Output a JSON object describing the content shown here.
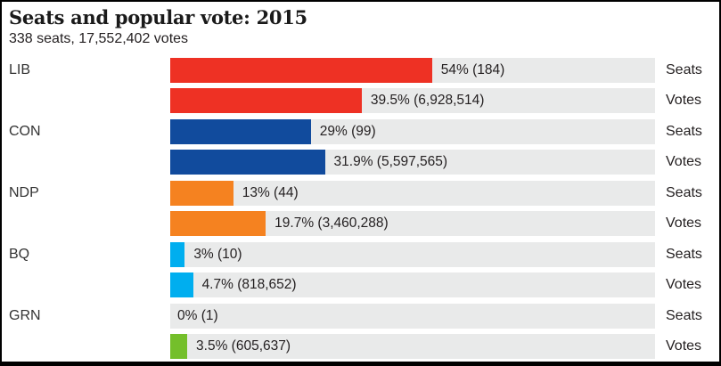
{
  "header": {
    "title": "Seats and popular vote: 2015",
    "subtitle": "338 seats, 17,552,402 votes"
  },
  "row_labels": {
    "seats": "Seats",
    "votes": "Votes"
  },
  "colors": {
    "border": "#000000",
    "track": "#E9EAEA",
    "lib": "#EE3124",
    "con": "#114B9D",
    "ndp": "#F58220",
    "bq": "#00AEEF",
    "grn": "#74BF2B"
  },
  "chart_data": {
    "type": "bar",
    "title": "Seats and popular vote: 2015",
    "subtitle": "338 seats, 17,552,402 votes",
    "total_seats": 338,
    "total_votes": 17552402,
    "x_max_percent": 100,
    "grid": false,
    "legend_position": "right-row-labels",
    "parties": [
      {
        "abbr": "LIB",
        "color": "#EE3124",
        "seats_percent": 54,
        "seats_count": 184,
        "seats_label": "54% (184)",
        "votes_percent": 39.5,
        "votes_count": 6928514,
        "votes_label": "39.5% (6,928,514)"
      },
      {
        "abbr": "CON",
        "color": "#114B9D",
        "seats_percent": 29,
        "seats_count": 99,
        "seats_label": "29% (99)",
        "votes_percent": 31.9,
        "votes_count": 5597565,
        "votes_label": "31.9% (5,597,565)"
      },
      {
        "abbr": "NDP",
        "color": "#F58220",
        "seats_percent": 13,
        "seats_count": 44,
        "seats_label": "13% (44)",
        "votes_percent": 19.7,
        "votes_count": 3460288,
        "votes_label": "19.7% (3,460,288)"
      },
      {
        "abbr": "BQ",
        "color": "#00AEEF",
        "seats_percent": 3,
        "seats_count": 10,
        "seats_label": "3% (10)",
        "votes_percent": 4.7,
        "votes_count": 818652,
        "votes_label": "4.7% (818,652)"
      },
      {
        "abbr": "GRN",
        "color": "#74BF2B",
        "seats_percent": 0,
        "seats_count": 1,
        "seats_label": "0% (1)",
        "votes_percent": 3.5,
        "votes_count": 605637,
        "votes_label": "3.5% (605,637)"
      }
    ]
  }
}
